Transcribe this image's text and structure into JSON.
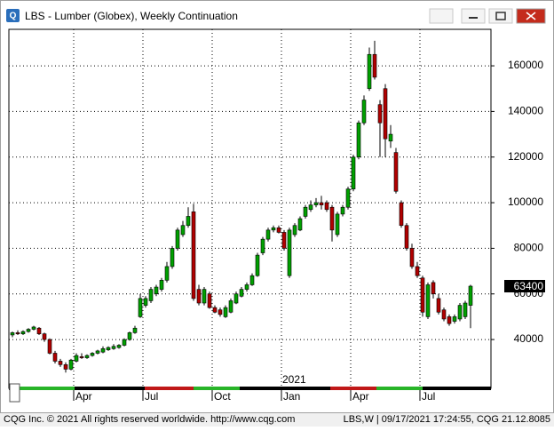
{
  "window": {
    "title": "LBS - Lumber (Globex), Weekly Continuation"
  },
  "footer": {
    "left": "CQG Inc. © 2021 All rights reserved worldwide. http://www.cqg.com",
    "right": "LBS,W | 09/17/2021 17:24:55, CQG 21.12.8085"
  },
  "chart_data": {
    "type": "candlestick",
    "categories": [
      null,
      null,
      null,
      null,
      null,
      null,
      null,
      null,
      null,
      null,
      null,
      null,
      "Apr",
      null,
      null,
      null,
      null,
      null,
      null,
      null,
      null,
      null,
      null,
      null,
      null,
      "Jul",
      null,
      null,
      null,
      null,
      null,
      null,
      null,
      null,
      null,
      null,
      null,
      null,
      "Oct",
      null,
      null,
      null,
      null,
      null,
      null,
      null,
      null,
      null,
      null,
      null,
      null,
      "Jan",
      null,
      null,
      null,
      null,
      null,
      null,
      null,
      null,
      null,
      null,
      null,
      null,
      "Apr",
      null,
      null,
      null,
      null,
      null,
      null,
      null,
      null,
      null,
      null,
      null,
      null,
      "Jul",
      null,
      null,
      null,
      null,
      null,
      null,
      null,
      null,
      null
    ],
    "open": [
      42000,
      43000,
      42500,
      43500,
      44500,
      45000,
      42500,
      40000,
      34000,
      30500,
      29000,
      27000,
      30500,
      32500,
      32000,
      33000,
      34000,
      34500,
      35500,
      36000,
      36500,
      37500,
      40000,
      43000,
      50000,
      55000,
      57000,
      60000,
      62000,
      66000,
      72000,
      80000,
      86000,
      90000,
      96000,
      62000,
      56000,
      60000,
      54000,
      53000,
      50000,
      52000,
      56000,
      59000,
      62000,
      64000,
      68000,
      78000,
      84000,
      88000,
      89000,
      87000,
      68000,
      86000,
      88000,
      94000,
      97000,
      99000,
      100000,
      100000,
      98000,
      86000,
      95000,
      98000,
      106000,
      120000,
      135000,
      150000,
      165000,
      143000,
      150000,
      127000,
      122000,
      100000,
      90000,
      80000,
      72000,
      67000,
      50000,
      65000,
      58000,
      53000,
      50000,
      48000,
      49000,
      50000,
      55000
    ],
    "high": [
      43500,
      44000,
      44000,
      45000,
      46000,
      45500,
      43000,
      40500,
      35000,
      31500,
      30000,
      31500,
      34000,
      34000,
      33500,
      34500,
      35500,
      37000,
      37000,
      38000,
      38000,
      40500,
      43500,
      46000,
      60000,
      59000,
      63000,
      64000,
      67000,
      74000,
      81000,
      89000,
      92000,
      98000,
      99500,
      64000,
      63000,
      61000,
      55000,
      54000,
      55000,
      58000,
      61000,
      63000,
      65000,
      69000,
      78000,
      85000,
      89000,
      90000,
      90000,
      88000,
      89000,
      91000,
      94000,
      99000,
      101000,
      102000,
      103000,
      101000,
      99000,
      96000,
      99000,
      107000,
      121000,
      136000,
      147000,
      168000,
      171000,
      145000,
      152000,
      134000,
      124000,
      101000,
      91000,
      82000,
      74000,
      68000,
      65000,
      66000,
      60000,
      54000,
      51000,
      51000,
      56000,
      57000,
      64000
    ],
    "low": [
      41000,
      42000,
      42000,
      43000,
      44000,
      42000,
      39000,
      33500,
      29500,
      28000,
      25500,
      26500,
      30000,
      31500,
      31500,
      32500,
      33500,
      34000,
      35000,
      35500,
      36000,
      37000,
      39500,
      42500,
      49500,
      54000,
      56000,
      59000,
      61000,
      65000,
      71000,
      79000,
      85000,
      89000,
      57000,
      55000,
      55000,
      53500,
      51500,
      50000,
      49500,
      51500,
      55500,
      58500,
      61000,
      63500,
      67500,
      77000,
      83000,
      87000,
      86500,
      79000,
      67000,
      85000,
      87500,
      93000,
      96000,
      98000,
      97000,
      96000,
      83000,
      85000,
      94000,
      97000,
      105000,
      119000,
      134000,
      149000,
      154000,
      120000,
      120000,
      124000,
      104000,
      89000,
      79000,
      71000,
      67000,
      50000,
      49000,
      58000,
      51000,
      48000,
      46000,
      47000,
      48000,
      49000,
      45000
    ],
    "close": [
      43000,
      42500,
      43500,
      44500,
      45500,
      42500,
      40000,
      34000,
      30500,
      29000,
      27000,
      31000,
      33000,
      32000,
      33000,
      34000,
      35000,
      36000,
      36500,
      37000,
      37500,
      40000,
      43000,
      45000,
      58000,
      58000,
      62000,
      63000,
      66000,
      72000,
      80000,
      88000,
      90000,
      94000,
      58000,
      56000,
      62000,
      54000,
      52000,
      51000,
      54000,
      57000,
      60000,
      62000,
      64000,
      68000,
      77000,
      84000,
      88000,
      89000,
      87000,
      80000,
      88000,
      90000,
      93000,
      98000,
      99000,
      100000,
      99000,
      97000,
      88000,
      95000,
      98000,
      106000,
      120000,
      135000,
      145000,
      165000,
      155000,
      135000,
      128000,
      130000,
      105000,
      90000,
      80000,
      72000,
      68000,
      52000,
      64000,
      60000,
      52000,
      49000,
      47000,
      50000,
      55000,
      56000,
      63400
    ],
    "up_color": "#00a000",
    "down_color": "#b00000",
    "ylim": [
      18600,
      176000
    ],
    "yticks": [
      40000,
      60000,
      80000,
      100000,
      120000,
      140000,
      160000
    ],
    "grid": true,
    "annotation": "2021",
    "last_value": 63400
  }
}
